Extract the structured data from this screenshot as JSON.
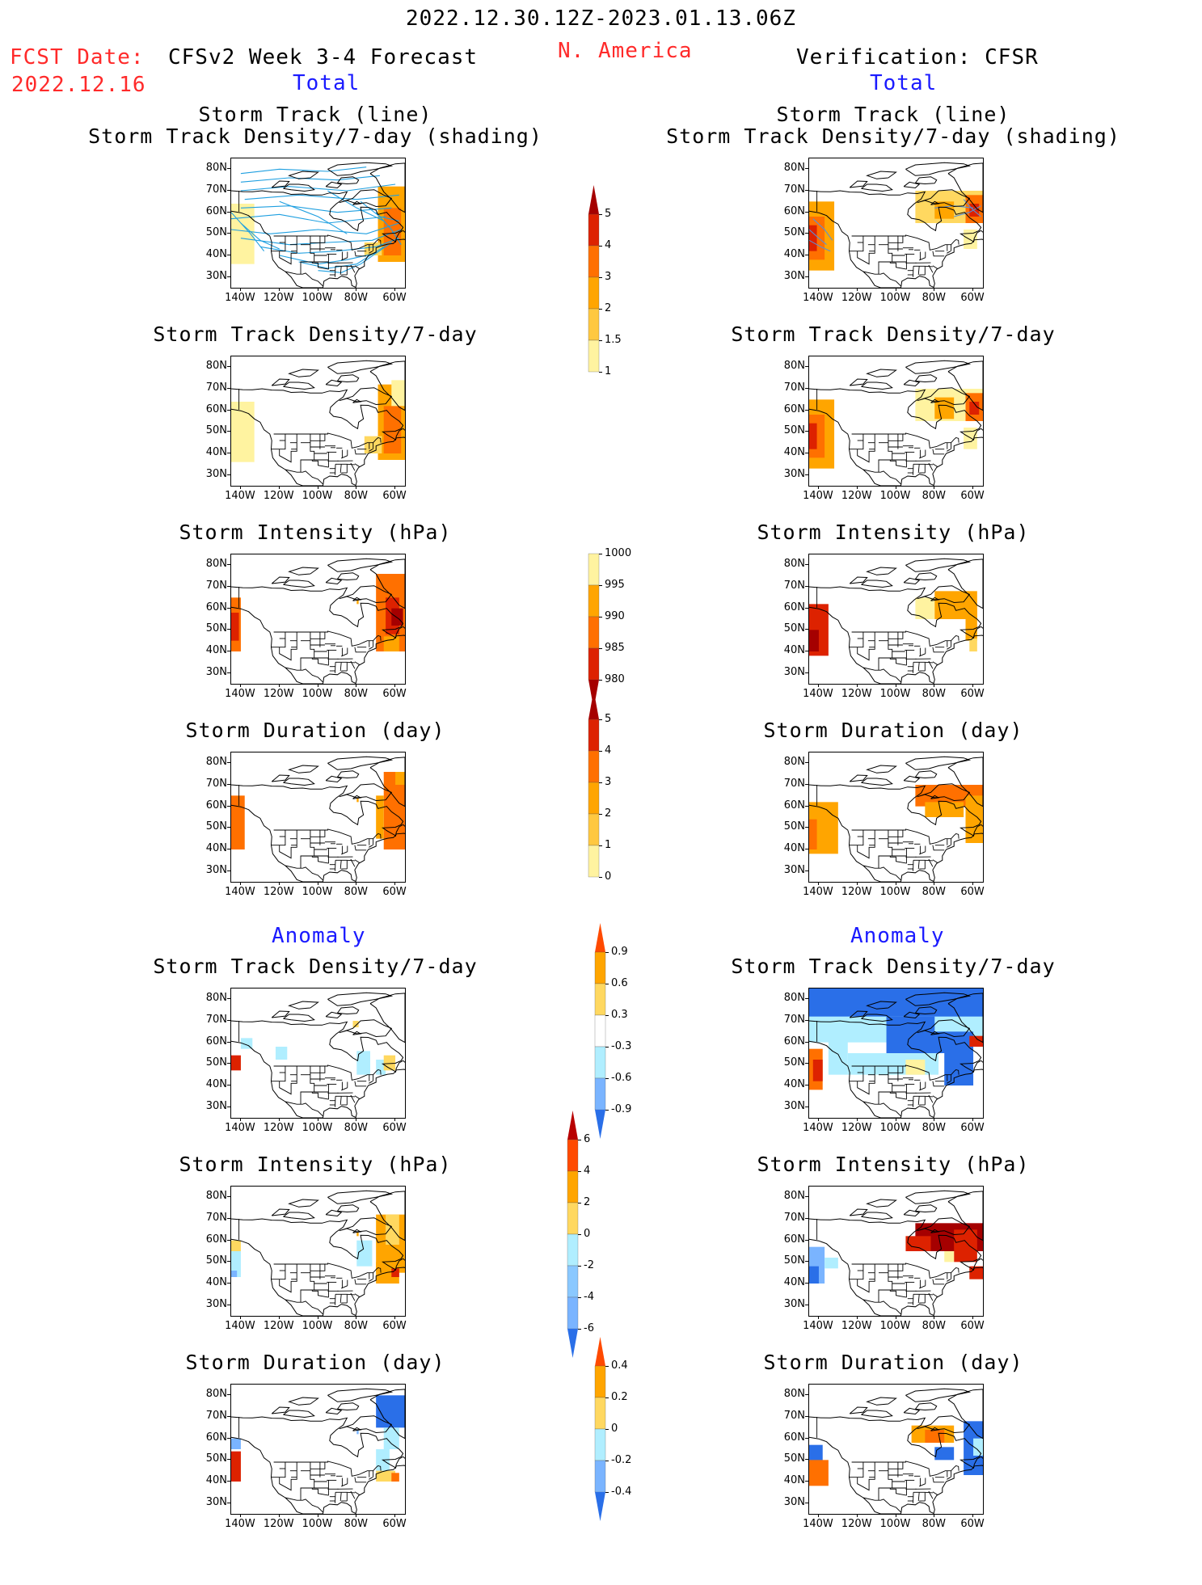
{
  "header": {
    "date_range": "2022.12.30.12Z-2023.01.13.06Z",
    "fcst_label": "FCST Date:",
    "fcst_date": "2022.12.16",
    "forecast_title": "CFSv2 Week 3-4 Forecast",
    "region": "N. America",
    "verification_title": "Verification: CFSR",
    "total_label_left": "Total",
    "total_label_right": "Total",
    "anomaly_label_left": "Anomaly",
    "anomaly_label_right": "Anomaly"
  },
  "axes": {
    "lat_ticks": [
      "80N",
      "70N",
      "60N",
      "50N",
      "40N",
      "30N"
    ],
    "lon_ticks": [
      "140W",
      "120W",
      "100W",
      "80W",
      "60W"
    ]
  },
  "panels": {
    "left": [
      {
        "title1": "Storm Track (line)",
        "title2": "Storm Track Density/7-day (shading)"
      },
      {
        "title1": "Storm Track Density/7-day",
        "title2": ""
      },
      {
        "title1": "Storm Intensity (hPa)",
        "title2": ""
      },
      {
        "title1": "Storm Duration (day)",
        "title2": ""
      },
      {
        "title1": "Storm Track Density/7-day",
        "title2": ""
      },
      {
        "title1": "Storm Intensity (hPa)",
        "title2": ""
      },
      {
        "title1": "Storm Duration (day)",
        "title2": ""
      }
    ],
    "right": [
      {
        "title1": "Storm Track (line)",
        "title2": "Storm Track Density/7-day (shading)"
      },
      {
        "title1": "Storm Track Density/7-day",
        "title2": ""
      },
      {
        "title1": "Storm Intensity (hPa)",
        "title2": ""
      },
      {
        "title1": "Storm Duration (day)",
        "title2": ""
      },
      {
        "title1": "Storm Track Density/7-day",
        "title2": ""
      },
      {
        "title1": "Storm Intensity (hPa)",
        "title2": ""
      },
      {
        "title1": "Storm Duration (day)",
        "title2": ""
      }
    ]
  },
  "colorbars": [
    {
      "name": "density-total",
      "labels": [
        "5",
        "4",
        "3",
        "2",
        "1.5",
        "1"
      ],
      "colors": [
        "#a50000",
        "#dd2200",
        "#ff7000",
        "#ffa500",
        "#ffc840",
        "#fff3a0"
      ],
      "tri_top": true,
      "tri_bottom": false
    },
    {
      "name": "intensity-total",
      "labels": [
        "1000",
        "995",
        "990",
        "985",
        "980"
      ],
      "colors": [
        "#fff3a0",
        "#ffa500",
        "#ff7000",
        "#dd2200",
        "#a50000"
      ],
      "tri_top": false,
      "tri_bottom": true
    },
    {
      "name": "duration-total",
      "labels": [
        "5",
        "4",
        "3",
        "2",
        "1",
        "0"
      ],
      "colors": [
        "#a50000",
        "#dd2200",
        "#ff7000",
        "#ffa500",
        "#ffc840",
        "#fff3a0"
      ],
      "tri_top": true,
      "tri_bottom": false
    },
    {
      "name": "density-anomaly",
      "labels": [
        "0.9",
        "0.6",
        "0.3",
        "-0.3",
        "-0.6",
        "-0.9"
      ],
      "colors": [
        "#ff4a00",
        "#ffa500",
        "#ffd860",
        "#ffffff",
        "#b0eeff",
        "#7ab4ff",
        "#2a6fe8"
      ],
      "tri_top": true,
      "tri_bottom": true
    },
    {
      "name": "intensity-anomaly",
      "labels": [
        "6",
        "4",
        "2",
        "0",
        "-2",
        "-4",
        "-6"
      ],
      "colors": [
        "#b80000",
        "#ff4a00",
        "#ffa500",
        "#ffd860",
        "#b0eeff",
        "#8ac8ff",
        "#7ab4ff",
        "#2a6fe8"
      ],
      "tri_top": true,
      "tri_bottom": true
    },
    {
      "name": "duration-anomaly",
      "labels": [
        "0.4",
        "0.2",
        "0",
        "-0.2",
        "-0.4"
      ],
      "colors": [
        "#ff4a00",
        "#ffa500",
        "#ffd860",
        "#b0eeff",
        "#7ab4ff",
        "#2a6fe8"
      ],
      "tri_top": true,
      "tri_bottom": true
    }
  ],
  "chart_data": {
    "type": "heatmap",
    "description_units": {
      "density": "storms per 7 days",
      "intensity": "hPa",
      "duration": "day"
    }
  }
}
